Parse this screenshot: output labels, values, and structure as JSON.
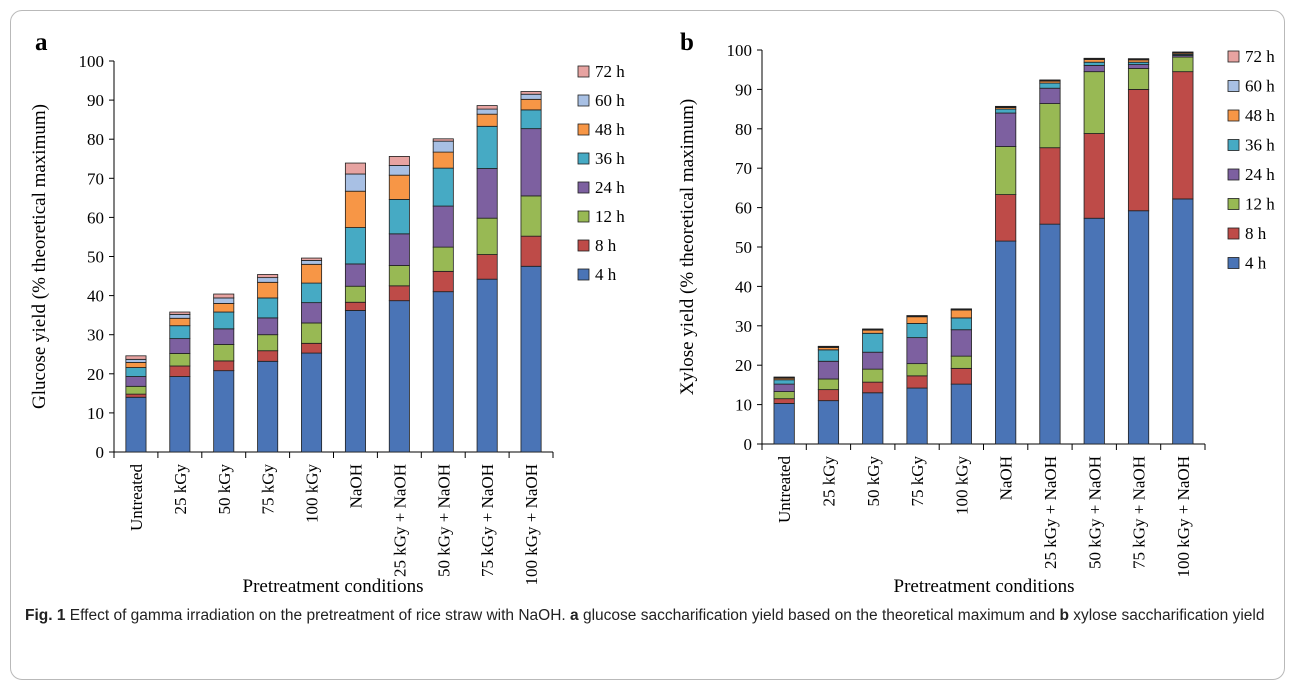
{
  "figure": {
    "caption_label": "Fig. 1",
    "caption_text": "Effect of gamma irradiation on the pretreatment of rice straw with NaOH.",
    "caption_a_label": "a",
    "caption_a_text": "glucose saccharification yield based on the theoretical maximum and",
    "caption_b_label": "b",
    "caption_b_text": "xylose saccharification yield"
  },
  "colors": [
    "#4a74b6",
    "#be4b48",
    "#98b954",
    "#7d60a0",
    "#46aac4",
    "#f79646",
    "#a8c0e4",
    "#e7a3a1"
  ],
  "chart_data": [
    {
      "type": "bar",
      "stacked": true,
      "panel_label": "a",
      "ylabel": "Glucose yield (% theoretical maximum)",
      "xlabel": "Pretreatment conditions",
      "ylim": [
        0,
        100
      ],
      "yticks": [
        0,
        10,
        20,
        30,
        40,
        50,
        60,
        70,
        80,
        90,
        100
      ],
      "legend_position": "right",
      "categories": [
        "Untreated",
        "25 kGy",
        "50 kGy",
        "75 kGy",
        "100 kGy",
        "NaOH",
        "25 kGy + NaOH",
        "50 kGy + NaOH",
        "75 kGy + NaOH",
        "100 kGy + NaOH"
      ],
      "series": [
        {
          "name": "4 h",
          "values": [
            14.0,
            19.3,
            20.8,
            23.2,
            25.3,
            36.2,
            38.7,
            41.0,
            44.2,
            47.5
          ]
        },
        {
          "name": "8 h",
          "values": [
            0.8,
            2.7,
            2.5,
            2.7,
            2.5,
            2.1,
            3.8,
            5.2,
            6.3,
            7.7
          ]
        },
        {
          "name": "12 h",
          "values": [
            2.0,
            3.2,
            4.2,
            4.1,
            5.2,
            4.1,
            5.2,
            6.2,
            9.3,
            10.3
          ]
        },
        {
          "name": "24 h",
          "values": [
            2.5,
            3.8,
            4.0,
            4.3,
            5.2,
            5.7,
            8.1,
            10.5,
            12.7,
            17.2
          ]
        },
        {
          "name": "36 h",
          "values": [
            2.3,
            3.3,
            4.3,
            5.1,
            5.0,
            9.3,
            8.8,
            9.7,
            10.8,
            4.8
          ]
        },
        {
          "name": "48 h",
          "values": [
            1.3,
            1.9,
            2.2,
            4.0,
            4.8,
            9.3,
            6.2,
            4.1,
            3.1,
            2.7
          ]
        },
        {
          "name": "60 h",
          "values": [
            0.8,
            1.0,
            1.4,
            1.2,
            1.0,
            4.4,
            2.5,
            2.8,
            1.3,
            1.3
          ]
        },
        {
          "name": "72 h",
          "values": [
            0.9,
            0.6,
            1.0,
            0.8,
            0.6,
            2.8,
            2.3,
            0.6,
            0.9,
            0.7
          ]
        }
      ]
    },
    {
      "type": "bar",
      "stacked": true,
      "panel_label": "b",
      "ylabel": "Xylose yield (% theoretical maximum)",
      "xlabel": "Pretreatment conditions",
      "ylim": [
        0,
        100
      ],
      "yticks": [
        0,
        10,
        20,
        30,
        40,
        50,
        60,
        70,
        80,
        90,
        100
      ],
      "legend_position": "right",
      "categories": [
        "Untreated",
        "25 kGy",
        "50 kGy",
        "75 kGy",
        "100 kGy",
        "NaOH",
        "25 kGy + NaOH",
        "50 kGy + NaOH",
        "75 kGy + NaOH",
        "100 kGy + NaOH"
      ],
      "series": [
        {
          "name": "4 h",
          "values": [
            10.3,
            11.0,
            13.0,
            14.2,
            15.2,
            51.5,
            55.8,
            57.3,
            59.2,
            62.2
          ]
        },
        {
          "name": "8 h",
          "values": [
            1.2,
            2.8,
            2.7,
            3.1,
            4.0,
            11.8,
            19.4,
            21.5,
            30.8,
            32.3
          ]
        },
        {
          "name": "12 h",
          "values": [
            1.8,
            2.7,
            3.3,
            3.1,
            3.1,
            12.2,
            11.2,
            15.7,
            5.3,
            3.7
          ]
        },
        {
          "name": "24 h",
          "values": [
            1.9,
            4.5,
            4.3,
            6.6,
            6.7,
            8.5,
            3.9,
            1.6,
            1.0,
            0.4
          ]
        },
        {
          "name": "36 h",
          "values": [
            1.1,
            2.9,
            4.8,
            3.6,
            3.0,
            1.0,
            1.3,
            0.8,
            0.6,
            0.3
          ]
        },
        {
          "name": "48 h",
          "values": [
            0.4,
            0.6,
            0.8,
            1.7,
            2.0,
            0.4,
            0.5,
            0.7,
            0.6,
            0.3
          ]
        },
        {
          "name": "60 h",
          "values": [
            0.2,
            0.2,
            0.2,
            0.2,
            0.2,
            0.2,
            0.2,
            0.2,
            0.2,
            0.2
          ]
        },
        {
          "name": "72 h",
          "values": [
            0.1,
            0.1,
            0.1,
            0.1,
            0.1,
            0.1,
            0.1,
            0.1,
            0.1,
            0.1
          ]
        }
      ]
    }
  ]
}
